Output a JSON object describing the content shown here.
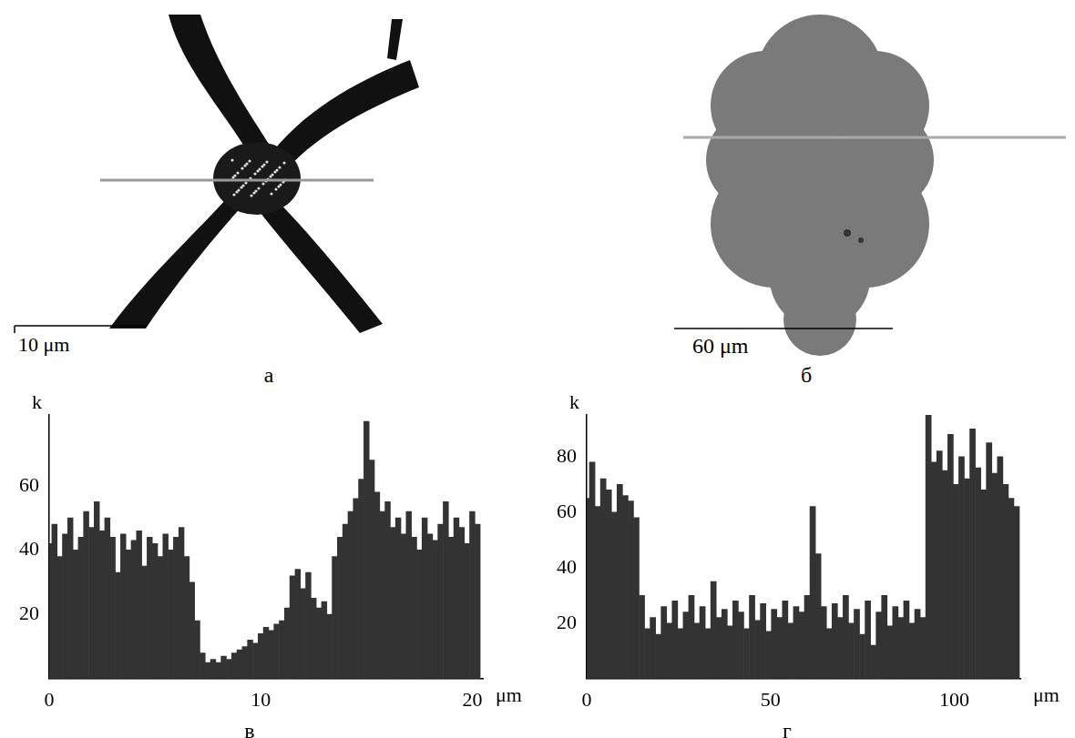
{
  "images": [
    {
      "letter": "а",
      "scale_bar": "10 μm"
    },
    {
      "letter": "б",
      "scale_bar": "60 μm"
    }
  ],
  "chart_data": [
    {
      "type": "bar",
      "title": "в",
      "x_label": "μm",
      "y_label": "k",
      "color": "#333333",
      "grid": false,
      "xlim": [
        0,
        20.5
      ],
      "xticks": [
        0,
        10,
        20
      ],
      "ylim": [
        0,
        82
      ],
      "yticks": [
        20,
        40,
        60
      ],
      "x": [
        0,
        0.25,
        0.5,
        0.75,
        1,
        1.25,
        1.5,
        1.75,
        2,
        2.25,
        2.5,
        2.75,
        3,
        3.25,
        3.5,
        3.75,
        4,
        4.25,
        4.5,
        4.75,
        5,
        5.25,
        5.5,
        5.75,
        6,
        6.25,
        6.5,
        6.75,
        7,
        7.25,
        7.5,
        7.75,
        8,
        8.25,
        8.5,
        8.75,
        9,
        9.25,
        9.5,
        9.75,
        10,
        10.25,
        10.5,
        10.75,
        11,
        11.25,
        11.5,
        11.75,
        12,
        12.25,
        12.5,
        12.75,
        13,
        13.25,
        13.5,
        13.75,
        14,
        14.25,
        14.5,
        14.75,
        15,
        15.25,
        15.5,
        15.75,
        16,
        16.25,
        16.5,
        16.75,
        17,
        17.25,
        17.5,
        17.75,
        18,
        18.25,
        18.5,
        18.75,
        19,
        19.25,
        19.5,
        19.75,
        20,
        20.25
      ],
      "values": [
        42,
        48,
        38,
        45,
        50,
        40,
        44,
        52,
        47,
        55,
        46,
        50,
        44,
        33,
        45,
        40,
        43,
        46,
        35,
        44,
        42,
        38,
        45,
        40,
        44,
        47,
        38,
        30,
        18,
        8,
        5,
        6,
        5,
        7,
        6,
        8,
        9,
        10,
        12,
        11,
        14,
        16,
        15,
        17,
        18,
        22,
        32,
        34,
        28,
        33,
        25,
        22,
        24,
        20,
        38,
        44,
        48,
        52,
        56,
        62,
        80,
        68,
        58,
        52,
        55,
        47,
        50,
        45,
        52,
        44,
        40,
        50,
        45,
        43,
        48,
        55,
        44,
        50,
        47,
        42,
        52,
        48
      ]
    },
    {
      "type": "bar",
      "title": "г",
      "x_label": "μm",
      "y_label": "k",
      "color": "#333333",
      "grid": false,
      "xlim": [
        0,
        118
      ],
      "xticks": [
        0,
        50,
        100
      ],
      "ylim": [
        0,
        95
      ],
      "yticks": [
        20,
        40,
        60,
        80
      ],
      "x": [
        0,
        1.5,
        3,
        4.5,
        6,
        7.5,
        9,
        10.5,
        12,
        13.5,
        15,
        16.5,
        18,
        19.5,
        21,
        22.5,
        24,
        25.5,
        27,
        28.5,
        30,
        31.5,
        33,
        34.5,
        36,
        37.5,
        39,
        40.5,
        42,
        43.5,
        45,
        46.5,
        48,
        49.5,
        51,
        52.5,
        54,
        55.5,
        57,
        58.5,
        60,
        61.5,
        63,
        64.5,
        66,
        67.5,
        69,
        70.5,
        72,
        73.5,
        75,
        76.5,
        78,
        79.5,
        81,
        82.5,
        84,
        85.5,
        87,
        88.5,
        90,
        91.5,
        93,
        94.5,
        96,
        97.5,
        99,
        100.5,
        102,
        103.5,
        105,
        106.5,
        108,
        109.5,
        111,
        112.5,
        114,
        115.5,
        117
      ],
      "values": [
        65,
        78,
        62,
        72,
        68,
        60,
        70,
        66,
        64,
        58,
        30,
        18,
        22,
        16,
        26,
        20,
        28,
        18,
        24,
        30,
        20,
        26,
        18,
        35,
        22,
        25,
        19,
        28,
        24,
        18,
        30,
        21,
        27,
        17,
        25,
        22,
        28,
        20,
        26,
        24,
        30,
        62,
        45,
        26,
        18,
        27,
        22,
        30,
        20,
        25,
        16,
        28,
        12,
        24,
        30,
        19,
        26,
        22,
        28,
        20,
        25,
        22,
        95,
        78,
        82,
        75,
        88,
        70,
        80,
        72,
        90,
        76,
        68,
        85,
        74,
        80,
        70,
        65,
        62
      ]
    }
  ]
}
